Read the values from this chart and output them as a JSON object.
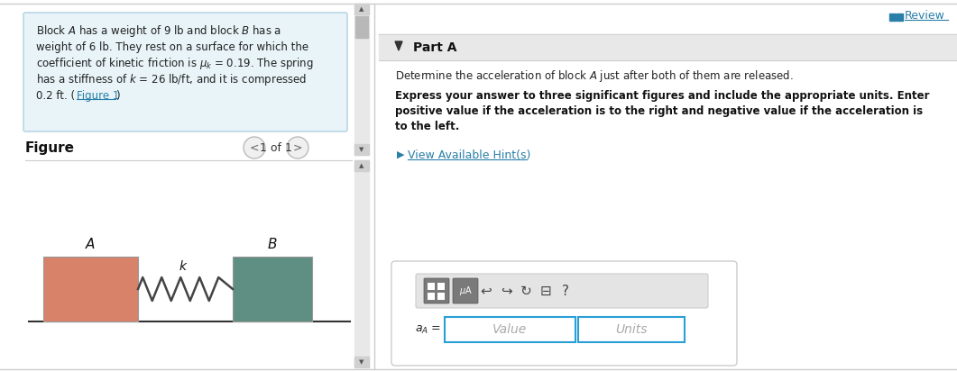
{
  "bg_color": "#ffffff",
  "problem_box_bg": "#e8f4f8",
  "problem_box_border": "#b0d0e0",
  "figure_label": "Figure",
  "figure_nav": "1 of 1",
  "block_A_color": "#d9826a",
  "block_B_color": "#5f8f82",
  "part_header_bg": "#e8e8e8",
  "part_header_text": "Part A",
  "review_text": "Review",
  "review_color": "#2a7fa8",
  "hint_color": "#2a7fa8",
  "input_box_color": "#2a9fd6",
  "scrollbar_color": "#cccccc"
}
